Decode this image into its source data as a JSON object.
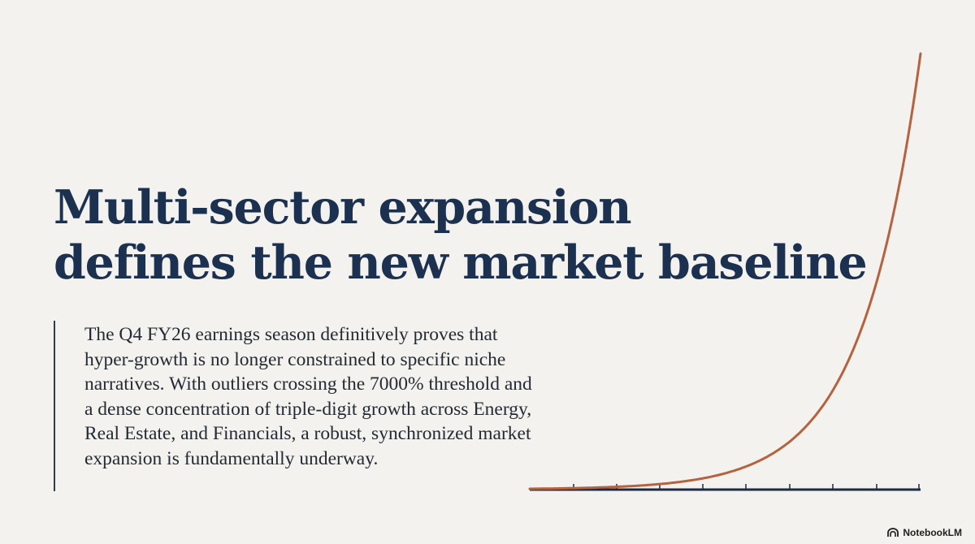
{
  "slide": {
    "title_line_1": "Multi-sector expansion",
    "title_line_2": "defines the new market baseline",
    "body": "The Q4 FY26 earnings season definitively proves that hyper-growth is no longer constrained to specific niche narratives. With outliers crossing the 7000% threshold and a dense concentration of triple-digit growth across Energy, Real Estate, and Financials, a robust, synchronized market expansion is fundamentally underway."
  },
  "colors": {
    "background": "#f3f2ee",
    "title": "#1c3050",
    "body_text": "#242a33",
    "curve": "#b5623f",
    "axis": "#1c2a42"
  },
  "brand": {
    "label": "NotebookLM",
    "icon": "notebooklm-logo-icon"
  }
}
